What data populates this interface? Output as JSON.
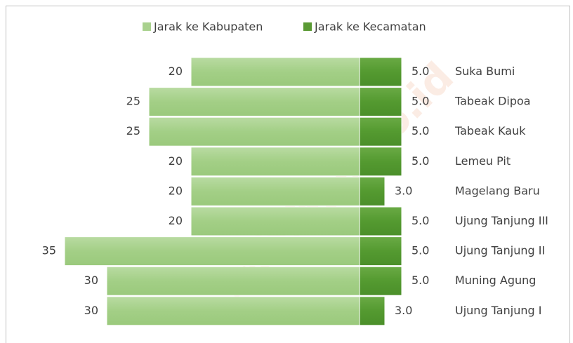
{
  "chart_data": {
    "type": "butterfly-bar",
    "categories": [
      "Suka Bumi",
      "Tabeak Dipoa",
      "Tabeak Kauk",
      "Lemeu Pit",
      "Magelang Baru",
      "Ujung Tanjung III",
      "Ujung Tanjung II",
      "Muning Agung",
      "Ujung Tanjung I"
    ],
    "series": [
      {
        "name": "Jarak ke Kabupaten",
        "color": "#a9d18e",
        "side": "left",
        "values": [
          20,
          25,
          25,
          20,
          20,
          20,
          35,
          30,
          30
        ]
      },
      {
        "name": "Jarak ke Kecamatan",
        "color": "#5a9a34",
        "side": "right",
        "values": [
          5,
          5,
          5,
          5,
          3,
          5,
          5,
          5,
          3
        ],
        "value_labels": [
          "5.0",
          "5.0",
          "5.0",
          "5.0",
          "3.0",
          "5.0",
          "5.0",
          "5.0",
          "3.0"
        ]
      }
    ],
    "legend": "top",
    "watermark": "kab.bps.go.id"
  }
}
